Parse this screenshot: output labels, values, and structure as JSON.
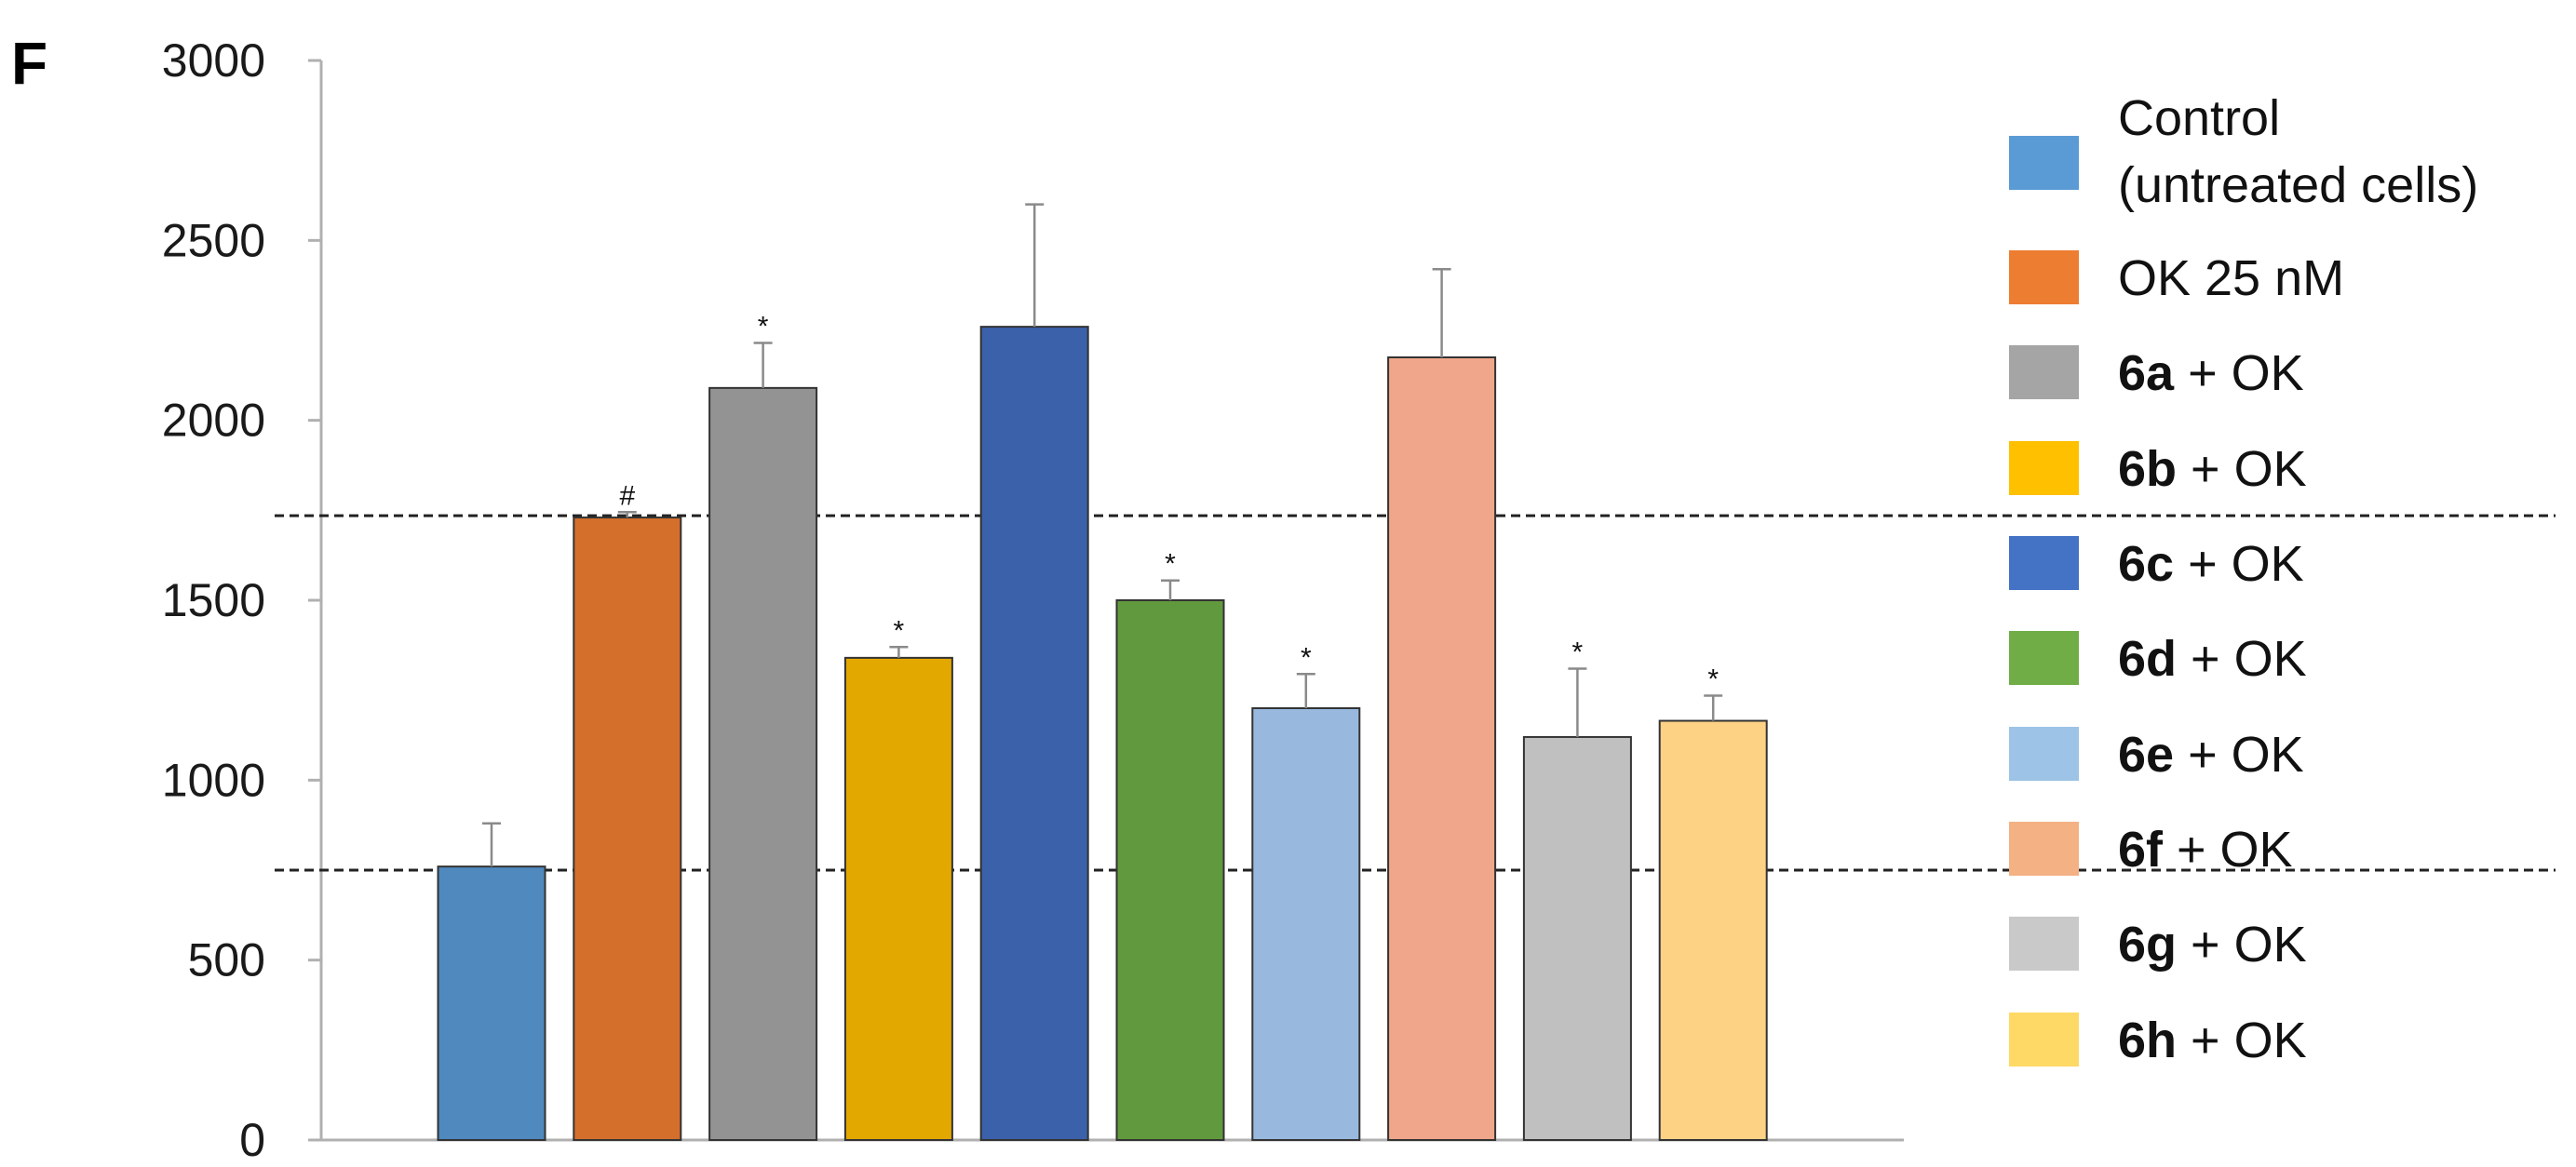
{
  "panel_label": "F",
  "chart_data": {
    "type": "bar",
    "ylim": [
      0,
      3000
    ],
    "yticks": [
      0,
      500,
      1000,
      1500,
      2000,
      2500,
      3000
    ],
    "grid": false,
    "legend_position": "right",
    "reference_lines": [
      750,
      1735
    ],
    "bars": [
      {
        "legend_bold": "",
        "legend_rest": "Control",
        "legend_line2": "(untreated cells)",
        "value": 760,
        "error": 120,
        "mark": "",
        "color": "#4f89be",
        "swatch": "#5b9bd5"
      },
      {
        "legend_bold": "",
        "legend_rest": "OK 25 nM",
        "legend_line2": "",
        "value": 1730,
        "error": 15,
        "mark": "#",
        "color": "#d46f2b",
        "swatch": "#ed7d31"
      },
      {
        "legend_bold": "6a",
        "legend_rest": " + OK",
        "legend_line2": "",
        "value": 2090,
        "error": 125,
        "mark": "*",
        "color": "#939393",
        "swatch": "#a5a5a5"
      },
      {
        "legend_bold": "6b",
        "legend_rest": " + OK",
        "legend_line2": "",
        "value": 1340,
        "error": 30,
        "mark": "*",
        "color": "#e3a800",
        "swatch": "#ffc000"
      },
      {
        "legend_bold": "6c",
        "legend_rest": " + OK",
        "legend_line2": "",
        "value": 2260,
        "error": 340,
        "mark": "",
        "color": "#3b61ab",
        "swatch": "#4472c4"
      },
      {
        "legend_bold": "6d",
        "legend_rest": " + OK",
        "legend_line2": "",
        "value": 1500,
        "error": 55,
        "mark": "*",
        "color": "#619a3e",
        "swatch": "#70ad47"
      },
      {
        "legend_bold": "6e",
        "legend_rest": " + OK",
        "legend_line2": "",
        "value": 1200,
        "error": 95,
        "mark": "*",
        "color": "#98b8de",
        "swatch": "#9dc3e6"
      },
      {
        "legend_bold": "6f",
        "legend_rest": " + OK",
        "legend_line2": "",
        "value": 2175,
        "error": 245,
        "mark": "",
        "color": "#f0a68a",
        "swatch": "#f4b183"
      },
      {
        "legend_bold": "6g",
        "legend_rest": " + OK",
        "legend_line2": "",
        "value": 1120,
        "error": 190,
        "mark": "*",
        "color": "#c0c0c0",
        "swatch": "#c9c9c9"
      },
      {
        "legend_bold": "6h",
        "legend_rest": " + OK",
        "legend_line2": "",
        "value": 1165,
        "error": 70,
        "mark": "*",
        "color": "#fdd285",
        "swatch": "#ffd966"
      }
    ]
  }
}
